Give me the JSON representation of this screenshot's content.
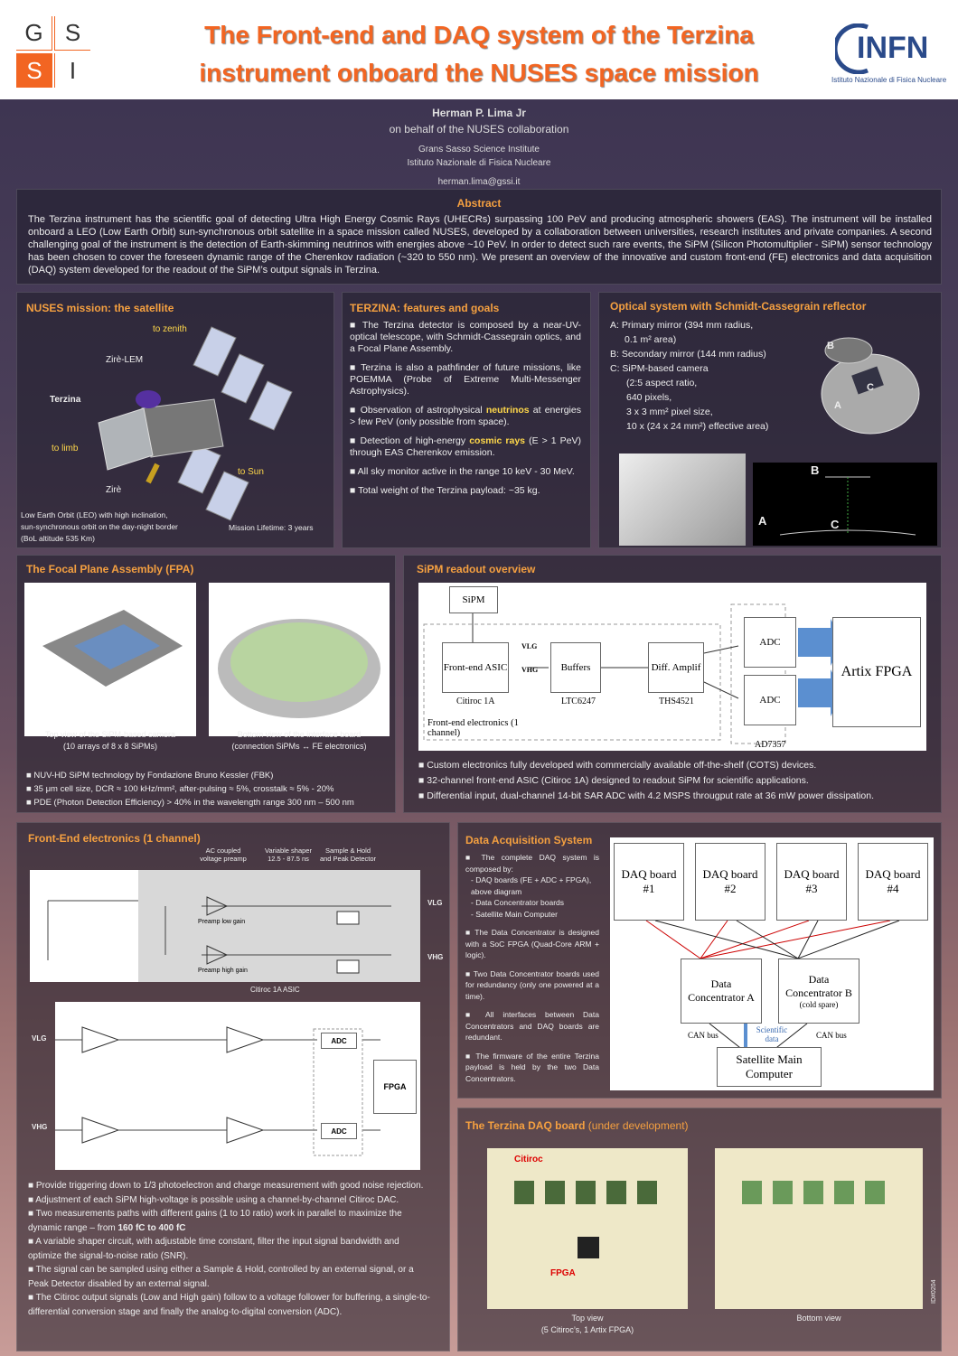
{
  "header": {
    "logo_left": [
      "G",
      "S",
      "S",
      "I"
    ],
    "title_line1": "The Front-end and DAQ system of the Terzina",
    "title_line2": "instrument onboard the NUSES space mission",
    "logo_right": "INFN",
    "logo_right_sub": "Istituto Nazionale di Fisica Nucleare"
  },
  "authors": {
    "name": "Herman P. Lima Jr",
    "collab": "on behalf of the NUSES collaboration",
    "inst1": "Grans Sasso Science Institute",
    "inst2": "Istituto Nazionale di Fisica Nucleare",
    "email": "herman.lima@gssi.it"
  },
  "abstract": {
    "title": "Abstract",
    "text": "The Terzina instrument has the scientific goal of detecting Ultra High Energy Cosmic Rays (UHECRs) surpassing 100 PeV and producing atmospheric showers (EAS). The instrument will be installed onboard a LEO (Low Earth Orbit) sun-synchronous orbit satellite in a space mission called NUSES, developed by a collaboration between universities, research institutes and private companies. A second challenging goal of the instrument is the detection of Earth-skimming neutrinos with energies above ~10 PeV. In order to detect such rare events, the SiPM (Silicon Photomultiplier - SiPM) sensor technology has been chosen to cover the foreseen dynamic range of the Cherenkov radiation (~320 to 550 nm). We present an overview of the innovative and custom front-end (FE) electronics and data acquisition (DAQ) system developed for the readout of the SiPM’s output signals in Terzina."
  },
  "nuses": {
    "title": "NUSES mission: the satellite",
    "to_zenith": "to zenith",
    "zire_lem": "Zirè-LEM",
    "terzina": "Terzina",
    "to_limb": "to limb",
    "to_sun": "to Sun",
    "zire": "Zirè",
    "orbit": "Low Earth Orbit (LEO) with high inclination, sun-synchronous orbit on the day-night border (BoL altitude 535 Km)",
    "lifetime": "Mission Lifetime: 3 years"
  },
  "terzina": {
    "title": "TERZINA: features and goals",
    "b1": "■ The Terzina detector is composed by a near-UV-optical telescope, with Schmidt-Cassegrain optics, and a Focal Plane Assembly.",
    "b2": "■ Terzina is also a pathfinder of future missions, like POEMMA (Probe of Extreme Multi-Messenger Astrophysics).",
    "b3a": "■ Observation of astrophysical ",
    "b3y": "neutrinos",
    "b3b": " at energies > few PeV (only possible from space).",
    "b4a": "■ Detection of high-energy ",
    "b4y": "cosmic rays",
    "b4b": " (E > 1 PeV) through EAS Cherenkov emission.",
    "b5": "■ All sky monitor active in the range 10 keV - 30 MeV.",
    "b6": "■ Total weight of the Terzina payload: ~35 kg."
  },
  "optical": {
    "title": "Optical system with Schmidt-Cassegrain reflector",
    "l1": "A: Primary mirror (394 mm radius,",
    "l2": "0.1 m² area)",
    "l3": "B: Secondary mirror (144 mm radius)",
    "l4": "C: SiPM-based camera",
    "l5": "(2:5 aspect ratio,",
    "l6": "640 pixels,",
    "l7": "3 x 3 mm² pixel size,",
    "l8": "10 x (24 x 24 mm²) effective area)",
    "A": "A",
    "B": "B",
    "C": "C"
  },
  "fpa": {
    "title": "The Focal Plane Assembly (FPA)",
    "cap1a": "Top view of the SiPM-based camera",
    "cap1b": "(10 arrays of 8 x 8 SiPMs)",
    "cap2a": "Bottom view of the interface board",
    "cap2b": "(connection SiPMs ↔ FE electronics)",
    "b1": "■ NUV-HD SiPM technology by Fondazione Bruno Kessler (FBK)",
    "b2": "■ 35 μm cell size, DCR ≈ 100 kHz/mm², after-pulsing ≈ 5%, crosstalk ≈ 5% - 20%",
    "b3": "■ PDE (Photon Detection Efficiency) > 40% in the wavelength range 300 nm – 500 nm"
  },
  "sipm": {
    "title": "SiPM readout overview",
    "sipm": "SiPM",
    "fe": "Front-end ASIC",
    "buffers": "Buffers",
    "diff": "Diff. Amplif",
    "adc": "ADC",
    "fpga": "Artix FPGA",
    "vlg": "VLG",
    "vhg": "VHG",
    "citiroc": "Citiroc 1A",
    "ltc": "LTC6247",
    "ths": "THS4521",
    "ad": "AD7357",
    "fe_label": "Front-end electronics (1 channel)",
    "b1": "■ Custom electronics fully developed with commercially available off-the-shelf (COTS) devices.",
    "b2": "■ 32-channel front-end ASIC (Citiroc 1A) designed to readout SiPM for scientific applications.",
    "b3": "■ Differential input, dual-channel 14-bit SAR ADC with 4.2 MSPS througput rate at 36 mW power dissipation."
  },
  "fee": {
    "title": "Front-End electronics (1 channel)",
    "h1": "AC coupled voltage preamp",
    "h2": "Variable shaper 12.5 - 87.5 ns",
    "h3": "Sample & Hold and Peak Detector",
    "asic": "Citiroc 1A ASIC",
    "lowgain": "Preamp low gain",
    "highgain": "Preamp high gain",
    "vlg": "VLG",
    "vhg": "VHG",
    "adc": "ADC",
    "fpga": "FPGA",
    "b1": "■ Provide triggering down to 1/3 photoelectron and charge measurement with good noise rejection.",
    "b2": "■ Adjustment of each SiPM high-voltage is possible using a channel-by-channel Citiroc DAC.",
    "b3a": "■ Two measurements paths with different gains (1 to 10 ratio) work in parallel to maximize the dynamic range – from ",
    "b3b": "160 fC to 400 fC",
    ".": ".",
    "b4": "■ A variable shaper circuit, with adjustable time constant, filter the input signal bandwidth and optimize the signal-to-noise ratio (SNR).",
    "b5": "■ The signal can be sampled using either a Sample & Hold, controlled by an external signal, or a Peak Detector disabled by an external signal.",
    "b6": "■ The Citiroc output signals (Low and High gain) follow to a voltage follower for buffering, a single-to-differential conversion stage and finally the analog-to-digital conversion (ADC)."
  },
  "daq": {
    "title": "Data Acquisition System",
    "b1": "■ The complete DAQ system is composed by:",
    "s1": "- DAQ boards (FE + ADC + FPGA), above diagram",
    "s2": "- Data Concentrator boards",
    "s3": "- Satellite Main Computer",
    "b2": "■ The Data Concentrator is designed with a SoC FPGA (Quad-Core ARM + logic).",
    "b3": "■ Two Data Concentrator boards used for redundancy (only one powered at a time).",
    "b4": "■ All interfaces between Data Concentrators and DAQ boards are redundant.",
    "b5": "■ The firmware of the entire Terzina payload is held by the two Data Concentrators.",
    "boards": [
      "DAQ board #1",
      "DAQ board #2",
      "DAQ board #3",
      "DAQ board #4"
    ],
    "dca": "Data Concentrator A",
    "dcb": "Data Concentrator B",
    "cold": "(cold spare)",
    "can": "CAN bus",
    "sci": "Scientific data",
    "smc": "Satellite Main Computer"
  },
  "board": {
    "title": "The Terzina DAQ board",
    "title2": " (under development)",
    "citiroc": "Citiroc",
    "fpga": "FPGA",
    "cap1a": "Top view",
    "cap1b": "(5 Citiroc’s, 1 Artix FPGA)",
    "cap2": "Bottom view",
    "id": "ID#0204"
  }
}
